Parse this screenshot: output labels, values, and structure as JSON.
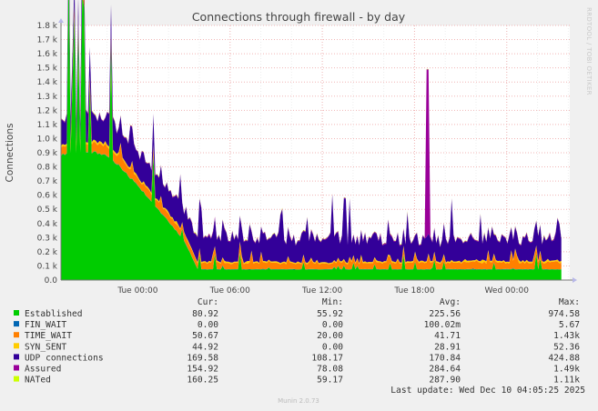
{
  "chart_data": {
    "type": "area",
    "title": "Connections through firewall - by day",
    "ylabel": "Connections",
    "side_label": "RRDTOOL / TOBI OETIKER",
    "ylim": [
      0,
      1800
    ],
    "y_ticks": [
      "0.0",
      "0.1 k",
      "0.2 k",
      "0.3 k",
      "0.4 k",
      "0.5 k",
      "0.6 k",
      "0.7 k",
      "0.8 k",
      "0.9 k",
      "1.0 k",
      "1.1 k",
      "1.2 k",
      "1.3 k",
      "1.4 k",
      "1.5 k",
      "1.6 k",
      "1.7 k",
      "1.8 k"
    ],
    "x_ticks": [
      "Tue 00:00",
      "Tue 06:00",
      "Tue 12:00",
      "Tue 18:00",
      "Wed 00:00"
    ],
    "x_range_hours": [
      -5,
      28.1
    ],
    "columns": [
      "",
      "Cur:",
      "Min:",
      "Avg:",
      "Max:"
    ],
    "series": [
      {
        "name": "Established",
        "color": "#00cc00",
        "cur": "80.92",
        "min": "55.92",
        "avg": "225.56",
        "max": "974.58",
        "profile": [
          [
            -5,
            880
          ],
          [
            -2.7,
            900
          ],
          [
            -1.8,
            870
          ],
          [
            0,
            670
          ],
          [
            3,
            280
          ],
          [
            3.9,
            75
          ],
          [
            27.5,
            75
          ]
        ]
      },
      {
        "name": "FIN_WAIT",
        "color": "#0066b3",
        "cur": "0.00",
        "min": "0.00",
        "avg": "100.02m",
        "max": "5.67",
        "profile": [
          [
            -5,
            2
          ],
          [
            27.5,
            2
          ]
        ]
      },
      {
        "name": "TIME_WAIT",
        "color": "#ff8000",
        "cur": "50.67",
        "min": "20.00",
        "avg": "41.71",
        "max": "1.43k",
        "profile": [
          [
            -5,
            55
          ],
          [
            -2,
            70
          ],
          [
            0,
            55
          ],
          [
            4,
            45
          ],
          [
            12,
            40
          ],
          [
            27.5,
            50
          ]
        ]
      },
      {
        "name": "SYN_SENT",
        "color": "#ffcc00",
        "cur": "44.92",
        "min": "0.00",
        "avg": "28.91",
        "max": "52.36",
        "profile": [
          [
            -5,
            12
          ],
          [
            -2,
            15
          ],
          [
            0,
            10
          ],
          [
            4,
            8
          ],
          [
            27.5,
            10
          ]
        ]
      },
      {
        "name": "UDP connections",
        "color": "#330099",
        "cur": "169.58",
        "min": "108.17",
        "avg": "170.84",
        "max": "424.88",
        "profile": [
          [
            -5,
            160
          ],
          [
            -2.5,
            190
          ],
          [
            0,
            180
          ],
          [
            4,
            160
          ],
          [
            12,
            170
          ],
          [
            18,
            150
          ],
          [
            27.5,
            150
          ]
        ]
      },
      {
        "name": "Assured",
        "color": "#990099",
        "cur": "154.92",
        "min": "78.08",
        "avg": "284.64",
        "max": "1.49k",
        "profile": [
          [
            -5,
            5
          ],
          [
            27.5,
            5
          ]
        ]
      },
      {
        "name": "NATed",
        "color": "#ccff00",
        "cur": "160.25",
        "min": "59.17",
        "avg": "287.90",
        "max": "1.11k",
        "profile": [
          [
            -5,
            2
          ],
          [
            27.5,
            2
          ]
        ]
      }
    ],
    "spike": {
      "series": "Assured",
      "x": 18.85,
      "value": 1490
    },
    "last_update": "Last update: Wed Dec 10 04:05:25 2025",
    "footer": "Munin 2.0.73"
  }
}
